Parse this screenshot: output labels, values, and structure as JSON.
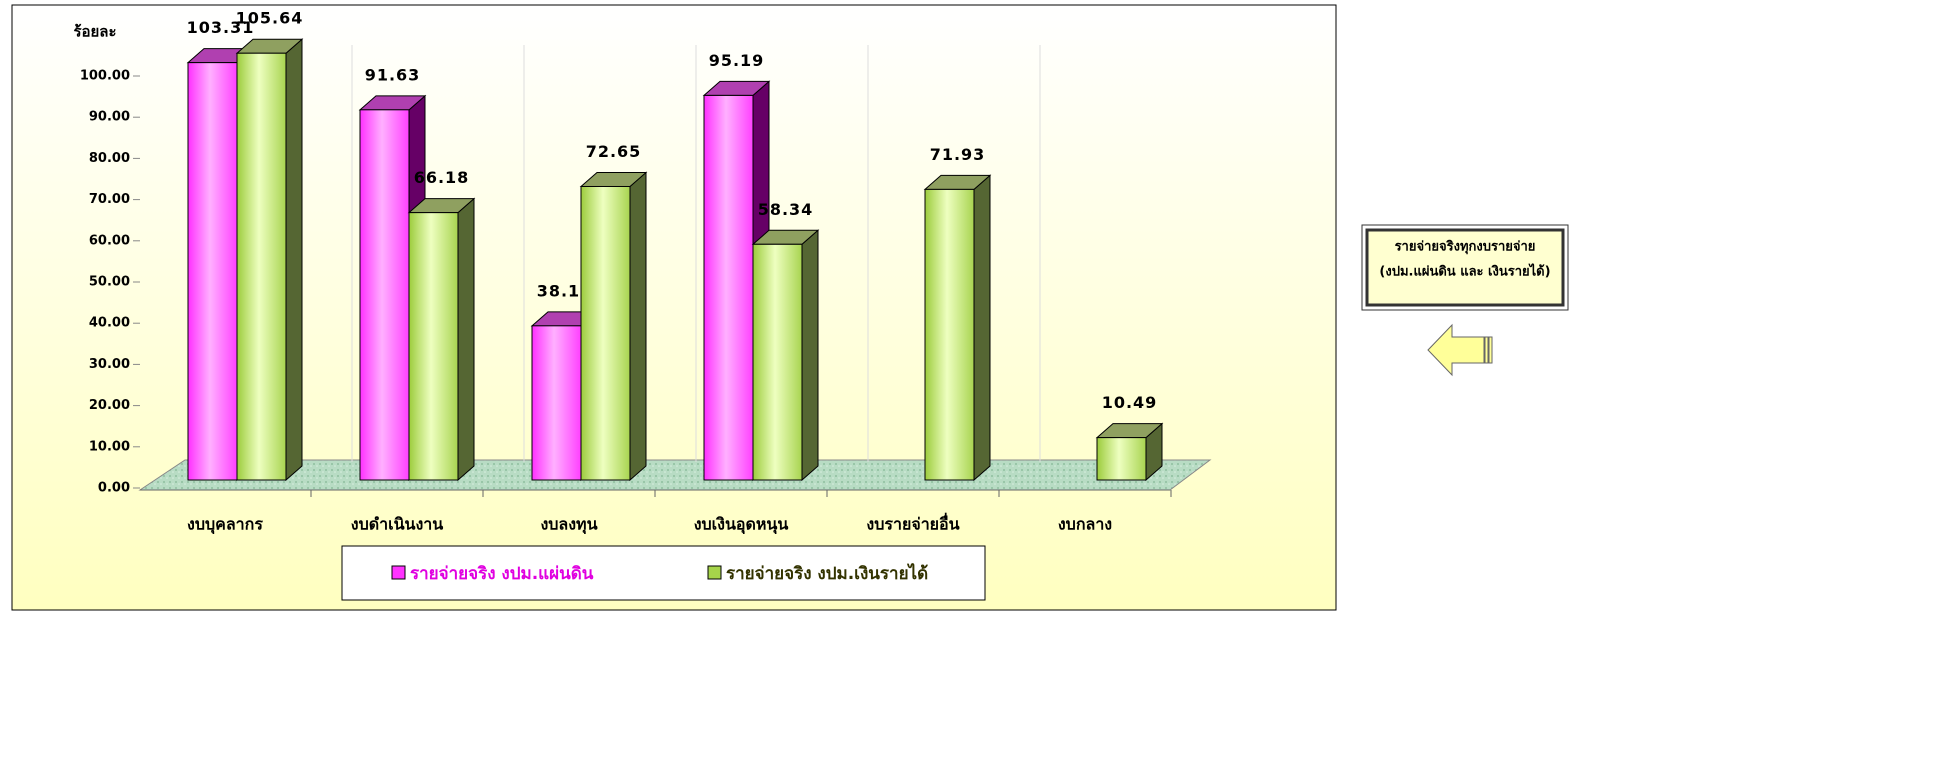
{
  "chart_data": {
    "type": "bar3d",
    "ylabel": "ร้อยละ",
    "categories": [
      "งบบุคลากร",
      "งบดำเนินงาน",
      "งบลงทุน",
      "งบเงินอุดหนุน",
      "งบรายจ่ายอื่น",
      "งบกลาง"
    ],
    "series": [
      {
        "name": "รายจ่ายจริง งปม.แผ่นดิน",
        "color": "#ff33ff",
        "values": [
          103.31,
          91.63,
          38.16,
          95.19,
          null,
          null
        ]
      },
      {
        "name": "รายจ่ายจริง งปม.เงินรายได้",
        "color": "#a6d44a",
        "values": [
          105.64,
          66.18,
          72.65,
          58.34,
          71.93,
          10.49
        ]
      }
    ],
    "ylim": [
      0,
      100
    ],
    "yticks": [
      {
        "value": 0,
        "label": "0.00"
      },
      {
        "value": 10,
        "label": "10.00"
      },
      {
        "value": 20,
        "label": "20.00"
      },
      {
        "value": 30,
        "label": "30.00"
      },
      {
        "value": 40,
        "label": "40.00"
      },
      {
        "value": 50,
        "label": "50.00"
      },
      {
        "value": 60,
        "label": "60.00"
      },
      {
        "value": 70,
        "label": "70.00"
      },
      {
        "value": 80,
        "label": "80.00"
      },
      {
        "value": 90,
        "label": "90.00"
      },
      {
        "value": 100,
        "label": "100.00"
      }
    ],
    "grid": true,
    "legend": "bottom",
    "annotations": [
      "รายจ่ายจริงทุกงบรายจ่าย",
      "(งปม.แผ่นดิน และ เงินรายได้)"
    ]
  }
}
